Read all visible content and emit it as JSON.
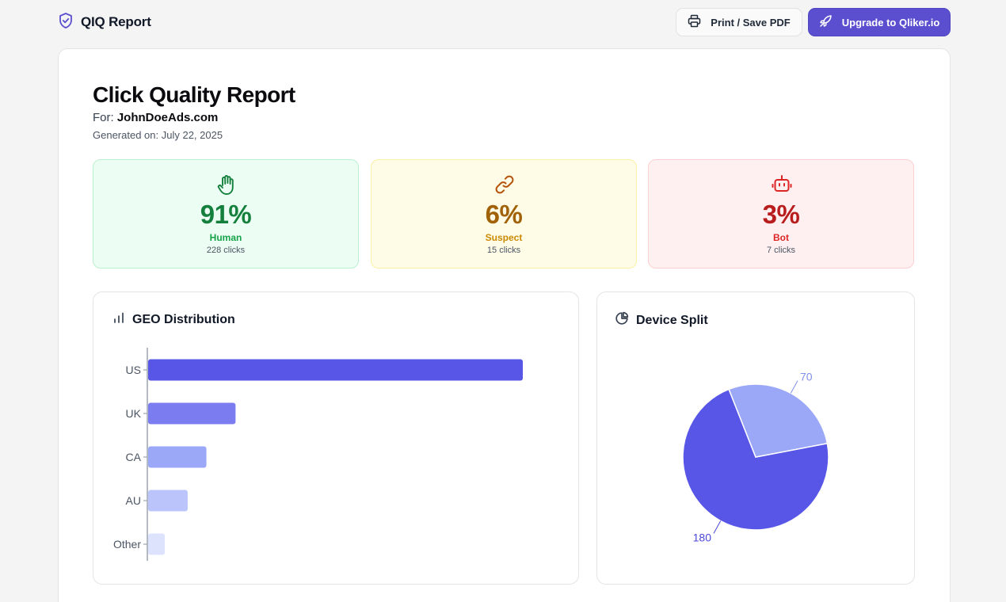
{
  "app": {
    "title": "QIQ Report",
    "print_label": "Print / Save PDF",
    "upgrade_label": "Upgrade to Qliker.io"
  },
  "report": {
    "title": "Click Quality Report",
    "for_prefix": "For:",
    "for_domain": "JohnDoeAds.com",
    "generated": "Generated on: July 22, 2025"
  },
  "stats": {
    "human": {
      "value": "91%",
      "label": "Human",
      "clicks": "228 clicks",
      "color": "#15803d",
      "icon": "hand-icon"
    },
    "suspect": {
      "value": "6%",
      "label": "Suspect",
      "clicks": "15 clicks",
      "color": "#a16207",
      "icon": "link-icon"
    },
    "bot": {
      "value": "3%",
      "label": "Bot",
      "clicks": "7 clicks",
      "color": "#b91c1c",
      "icon": "robot-icon"
    }
  },
  "geo": {
    "title": "GEO Distribution",
    "icon": "bar-chart-icon"
  },
  "device": {
    "title": "Device Split",
    "icon": "pie-chart-icon"
  },
  "chart_data": [
    {
      "type": "bar",
      "orientation": "horizontal",
      "title": "GEO Distribution",
      "categories": [
        "US",
        "UK",
        "CA",
        "AU",
        "Other"
      ],
      "values": [
        180,
        42,
        28,
        19,
        8
      ],
      "colors": [
        "#5856e6",
        "#7b7cf0",
        "#9ba8f7",
        "#bcc5fb",
        "#dde3fd"
      ],
      "xlabel": "",
      "ylabel": "",
      "grid": false
    },
    {
      "type": "pie",
      "title": "Device Split",
      "labels": [
        "180",
        "70"
      ],
      "values": [
        180,
        70
      ],
      "colors": [
        "#5856e6",
        "#9ba8f7"
      ],
      "label_colors": [
        "#4c49d8",
        "#8090e8"
      ]
    }
  ]
}
